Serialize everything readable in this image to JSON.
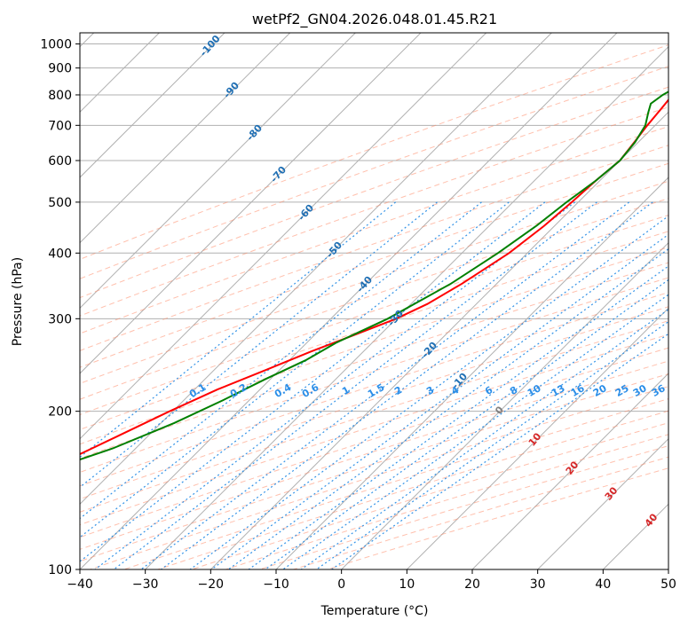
{
  "chart_data": {
    "type": "line",
    "subtype": "skew-t log-p diagram",
    "title": "wetPf2_GN04.2026.048.01.45.R21",
    "xlabel": "Temperature (°C)",
    "ylabel": "Pressure (hPa)",
    "xlim": [
      -40,
      50
    ],
    "ylim": [
      1050,
      100
    ],
    "y_scale": "log",
    "grid": true,
    "x_ticks": [
      -40,
      -30,
      -20,
      -10,
      0,
      10,
      20,
      30,
      40,
      50
    ],
    "y_ticks": [
      100,
      200,
      300,
      400,
      500,
      600,
      700,
      800,
      900,
      1000
    ],
    "series": [
      {
        "role": "temperature",
        "color": "#ff0000",
        "points": [
          {
            "p": 830,
            "t": -22.5
          },
          {
            "p": 800,
            "t": -22.0
          },
          {
            "p": 750,
            "t": -21.6
          },
          {
            "p": 700,
            "t": -21.2
          },
          {
            "p": 650,
            "t": -20.6
          },
          {
            "p": 600,
            "t": -20.0
          },
          {
            "p": 550,
            "t": -20.6
          },
          {
            "p": 500,
            "t": -21.0
          },
          {
            "p": 450,
            "t": -21.6
          },
          {
            "p": 400,
            "t": -22.8
          },
          {
            "p": 350,
            "t": -25.3
          },
          {
            "p": 320,
            "t": -27.5
          },
          {
            "p": 300,
            "t": -30.0
          },
          {
            "p": 280,
            "t": -33.8
          },
          {
            "p": 260,
            "t": -38.0
          },
          {
            "p": 240,
            "t": -42.0
          },
          {
            "p": 220,
            "t": -46.5
          },
          {
            "p": 200,
            "t": -50.5
          },
          {
            "p": 180,
            "t": -54.5
          },
          {
            "p": 160,
            "t": -59.0
          },
          {
            "p": 145,
            "t": -63.0
          },
          {
            "p": 130,
            "t": -66.0
          },
          {
            "p": 120,
            "t": -69.0
          },
          {
            "p": 110,
            "t": -72.5
          },
          {
            "p": 100,
            "t": -76.0
          }
        ]
      },
      {
        "role": "dewpoint",
        "color": "#008000",
        "points": [
          {
            "p": 830,
            "t": -22.5
          },
          {
            "p": 800,
            "t": -23.5
          },
          {
            "p": 770,
            "t": -24.0
          },
          {
            "p": 740,
            "t": -23.0
          },
          {
            "p": 700,
            "t": -21.5
          },
          {
            "p": 650,
            "t": -20.5
          },
          {
            "p": 600,
            "t": -20.0
          },
          {
            "p": 550,
            "t": -20.6
          },
          {
            "p": 500,
            "t": -21.8
          },
          {
            "p": 450,
            "t": -22.8
          },
          {
            "p": 400,
            "t": -24.5
          },
          {
            "p": 350,
            "t": -27.0
          },
          {
            "p": 300,
            "t": -31.3
          },
          {
            "p": 270,
            "t": -35.5
          },
          {
            "p": 250,
            "t": -37.5
          },
          {
            "p": 230,
            "t": -40.8
          },
          {
            "p": 210,
            "t": -44.0
          },
          {
            "p": 190,
            "t": -48.0
          },
          {
            "p": 170,
            "t": -53.5
          },
          {
            "p": 150,
            "t": -62.0
          },
          {
            "p": 130,
            "t": -71.0
          },
          {
            "p": 115,
            "t": -78.0
          },
          {
            "p": 100,
            "t": -86.5
          }
        ]
      }
    ],
    "dry_adiabat_labels": [
      "-100",
      "-90",
      "-80",
      "-70",
      "-60",
      "-50",
      "-40",
      "-30",
      "-20",
      "-10"
    ],
    "moist_adiabat_labels": [
      "0",
      "10",
      "20",
      "30",
      "40"
    ],
    "mixing_ratio_labels": [
      "0.1",
      "0.2",
      "0.4",
      "0.6",
      "1",
      "1.5",
      "2",
      "3",
      "4",
      "6",
      "8",
      "10",
      "13",
      "16",
      "20",
      "25",
      "30",
      "36"
    ],
    "mixing_ratio_values": [
      0.1,
      0.2,
      0.4,
      0.6,
      1,
      1.5,
      2,
      3,
      4,
      6,
      8,
      10,
      13,
      16,
      20,
      25,
      30,
      36
    ],
    "colors": {
      "isotherm_grid": "#b0b0b0",
      "dry_adiabat": "#ff8c69",
      "moist_adiabat": "#8fcf8f",
      "mixing_ratio": "#1e88e5",
      "dry_label": "#1f6fb4",
      "moist_label": "#d62728",
      "mixing_label": "#2b8ee8",
      "zero_label": "#808080"
    }
  }
}
